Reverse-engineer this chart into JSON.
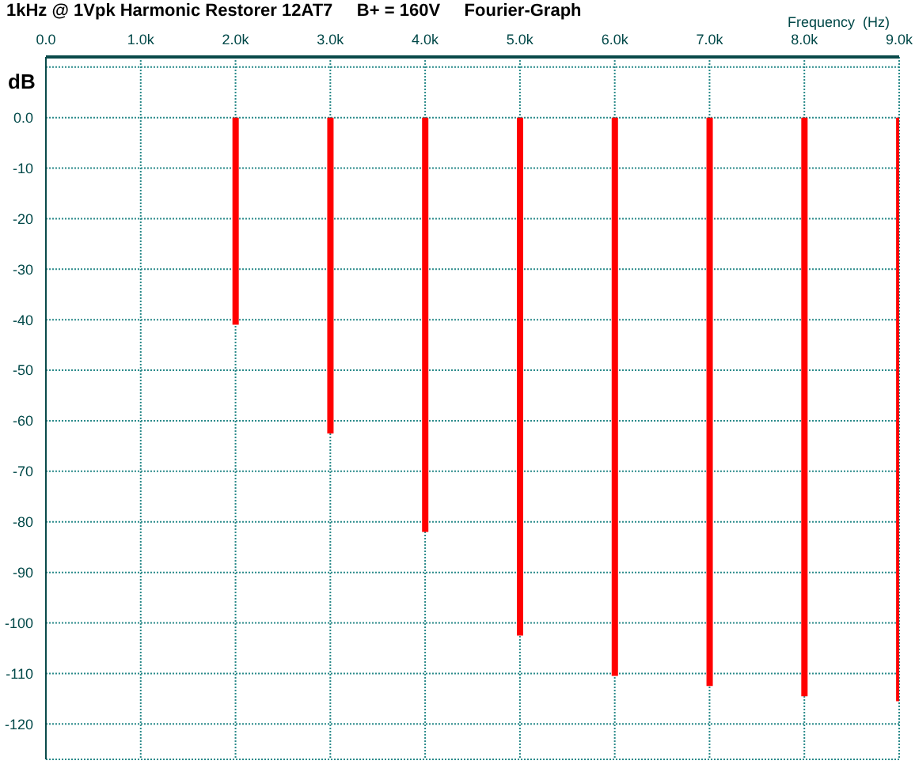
{
  "chart_data": {
    "type": "bar",
    "title": "1kHz @ 1Vpk Harmonic Restorer 12AT7     B+ = 160V     Fourier-Graph",
    "xlabel": "Frequency  (Hz)",
    "ylabel": "dB",
    "x": [
      1000,
      2000,
      3000,
      4000,
      5000,
      6000,
      7000,
      8000,
      9000
    ],
    "series": [
      {
        "color": "#ff0000",
        "values": [
          0,
          -41,
          -62.5,
          -82,
          -102.5,
          -110.5,
          -112.5,
          -114.5,
          -115.5
        ]
      }
    ],
    "xlim": [
      0,
      9000
    ],
    "xticks": [
      {
        "value": 0,
        "label": "0.0"
      },
      {
        "value": 1000,
        "label": "1.0k"
      },
      {
        "value": 2000,
        "label": "2.0k"
      },
      {
        "value": 3000,
        "label": "3.0k"
      },
      {
        "value": 4000,
        "label": "4.0k"
      },
      {
        "value": 5000,
        "label": "5.0k"
      },
      {
        "value": 6000,
        "label": "6.0k"
      },
      {
        "value": 7000,
        "label": "7.0k"
      },
      {
        "value": 8000,
        "label": "8.0k"
      },
      {
        "value": 9000,
        "label": "9.0k"
      }
    ],
    "ylim": [
      -127,
      12
    ],
    "yticks": [
      {
        "value": 10,
        "label": null
      },
      {
        "value": 0,
        "label": "0.0"
      },
      -10,
      -20,
      -30,
      -40,
      -50,
      -60,
      -70,
      -80,
      -90,
      -100,
      -110,
      -120
    ],
    "grid": true,
    "legend": false
  }
}
